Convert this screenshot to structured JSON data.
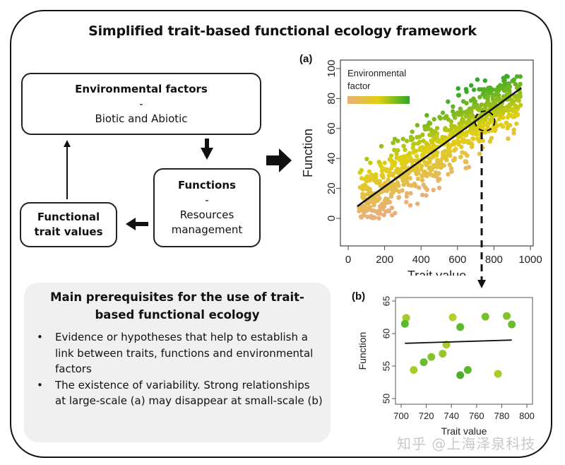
{
  "title": "Simplified trait-based functional ecology framework",
  "flow": {
    "environmental_factors": {
      "heading": "Environmental factors",
      "sep": "-",
      "sub": "Biotic and Abiotic"
    },
    "functions": {
      "heading": "Functions",
      "sep": "-",
      "sub_line1": "Resources",
      "sub_line2": "management"
    },
    "functional_trait_values": {
      "line1": "Functional",
      "line2": "trait values"
    }
  },
  "prerequisites": {
    "heading": "Main prerequisites for the use of trait-based functional ecology",
    "bullet": "•",
    "items": [
      "Evidence or hypotheses that help to establish a link between traits, functions and environmental factors",
      "The existence of variability. Strong relationships at large-scale (a) may disappear at small-scale (b)"
    ]
  },
  "watermark": "知乎 @上海泽泉科技",
  "colors": {
    "gradient_low": "#e8b07a",
    "gradient_mid": "#e0d010",
    "gradient_high": "#2ea82a"
  },
  "chart_data": [
    {
      "panel": "(a)",
      "type": "scatter",
      "title": "",
      "xlabel": "Trait value",
      "ylabel": "Function",
      "xlim": [
        0,
        1000
      ],
      "ylim": [
        0,
        100
      ],
      "xticks": [
        0,
        200,
        400,
        600,
        800,
        1000
      ],
      "yticks": [
        0,
        20,
        40,
        60,
        80,
        100
      ],
      "grid": false,
      "legend": {
        "title_line1": "Environmental",
        "title_line2": "factor",
        "type": "color gradient",
        "colors": [
          "#e8b07a",
          "#e0d010",
          "#2ea82a"
        ],
        "position": "top-left"
      },
      "description": "~1000 points scattered in a band around the fitted line; color shifts from tan (low environmental factor) to green (high).",
      "trend_line": {
        "x": [
          50,
          950
        ],
        "y": [
          8,
          87
        ]
      },
      "highlight_circle": {
        "x": 750,
        "y": 65,
        "style": "dashed"
      }
    },
    {
      "panel": "(b)",
      "type": "scatter",
      "title": "",
      "xlabel": "Trait value",
      "ylabel": "Function",
      "xlim": [
        700,
        800
      ],
      "ylim": [
        50,
        65
      ],
      "xticks": [
        700,
        720,
        740,
        760,
        780,
        800
      ],
      "yticks": [
        50,
        55,
        60,
        65
      ],
      "grid": false,
      "series": [
        {
          "name": "points",
          "x": [
            704,
            703,
            710,
            718,
            724,
            733,
            736,
            741,
            747,
            747,
            753,
            767,
            777,
            784,
            788
          ],
          "y": [
            62.4,
            61.5,
            54.4,
            55.6,
            56.4,
            56.9,
            58.3,
            62.5,
            61.0,
            53.6,
            54.4,
            62.6,
            53.8,
            62.7,
            61.4
          ],
          "colors": [
            "#a6cc2a",
            "#5cb82c",
            "#a6cc2a",
            "#6abc2c",
            "#84c42a",
            "#94c82a",
            "#a6cc2a",
            "#b2d02a",
            "#5cb82c",
            "#4cae2a",
            "#5cb82c",
            "#7ac02c",
            "#a6cc2a",
            "#84c42a",
            "#6abc2c"
          ]
        }
      ],
      "trend_line": {
        "x": [
          703,
          788
        ],
        "y": [
          58.5,
          59.0
        ]
      }
    }
  ]
}
